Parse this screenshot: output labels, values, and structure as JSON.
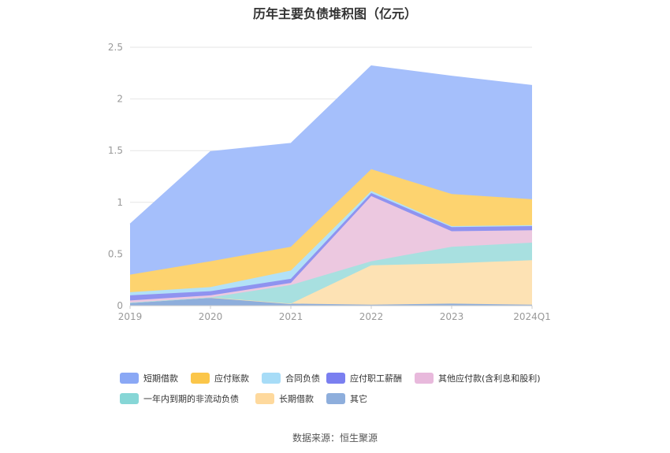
{
  "chart_data": {
    "type": "area",
    "stacked": true,
    "title": "历年主要负债堆积图（亿元）",
    "x": [
      "2019",
      "2020",
      "2021",
      "2022",
      "2023",
      "2024Q1"
    ],
    "ylim": [
      0,
      2.5
    ],
    "yticks": [
      "0",
      "0.5",
      "1",
      "1.5",
      "2",
      "2.5"
    ],
    "grid": true,
    "legend_position": "bottom",
    "series": [
      {
        "name": "其它",
        "color": "#8eaedc",
        "values": [
          0.03,
          0.08,
          0.02,
          0.01,
          0.02,
          0.01
        ]
      },
      {
        "name": "长期借款",
        "color": "#fde2b4",
        "values": [
          0,
          0,
          0,
          0.38,
          0.39,
          0.43
        ]
      },
      {
        "name": "一年内到期的非流动负债",
        "color": "#a8e0e0",
        "values": [
          0,
          0,
          0.18,
          0.04,
          0.16,
          0.17
        ]
      },
      {
        "name": "其他应付款(含利息和股利)",
        "color": "#ecc8e0",
        "values": [
          0.02,
          0.02,
          0.02,
          0.63,
          0.15,
          0.12
        ]
      },
      {
        "name": "应付职工薪酬",
        "color": "#8f93f0",
        "values": [
          0.05,
          0.04,
          0.04,
          0.03,
          0.04,
          0.04
        ]
      },
      {
        "name": "合同负债",
        "color": "#b2e1f7",
        "values": [
          0.03,
          0.04,
          0.08,
          0.02,
          0.01,
          0.01
        ]
      },
      {
        "name": "应付账款",
        "color": "#fdd36f",
        "values": [
          0.17,
          0.25,
          0.23,
          0.21,
          0.31,
          0.25
        ]
      },
      {
        "name": "短期借款",
        "color": "#a5bffb",
        "values": [
          0.49,
          1.06,
          1.0,
          1.0,
          1.14,
          1.1
        ]
      }
    ],
    "legend": [
      {
        "name": "短期借款",
        "color": "#8aa8f5"
      },
      {
        "name": "应付账款",
        "color": "#fbc64a"
      },
      {
        "name": "合同负债",
        "color": "#a7dcf7"
      },
      {
        "name": "应付职工薪酬",
        "color": "#7a7ff0"
      },
      {
        "name": "其他应付款(含利息和股利)",
        "color": "#e8b9dc"
      },
      {
        "name": "一年内到期的非流动负债",
        "color": "#86d6d6"
      },
      {
        "name": "长期借款",
        "color": "#fed99d"
      },
      {
        "name": "其它",
        "color": "#8eaedc"
      }
    ]
  },
  "source": "数据来源：恒生聚源"
}
